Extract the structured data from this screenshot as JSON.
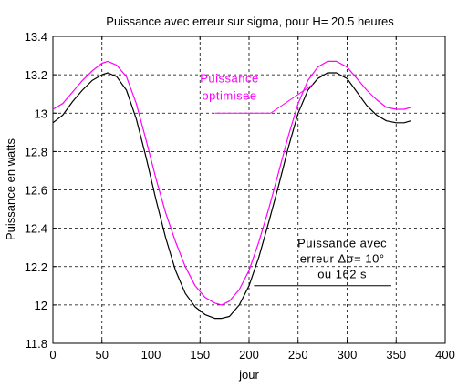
{
  "chart_data": {
    "type": "line",
    "title": "Puissance avec erreur sur sigma, pour H= 20.5 heures",
    "xlabel": "jour",
    "ylabel": "Puissance en watts",
    "xlim": [
      0,
      400
    ],
    "ylim": [
      11.8,
      13.4
    ],
    "xticks": [
      0,
      50,
      100,
      150,
      200,
      250,
      300,
      350,
      400
    ],
    "yticks": [
      11.8,
      12,
      12.2,
      12.4,
      12.6,
      12.8,
      13,
      13.2,
      13.4
    ],
    "ytick_labels": [
      "11.8",
      "12",
      "12.2",
      "12.4",
      "12.6",
      "12.8",
      "13",
      "13.2",
      "13.4"
    ],
    "grid": true,
    "series": [
      {
        "name": "Puissance optimisee",
        "color": "#ff00ff",
        "x": [
          0,
          10,
          20,
          30,
          40,
          50,
          56,
          65,
          75,
          85,
          95,
          105,
          115,
          125,
          135,
          145,
          155,
          165,
          172,
          180,
          190,
          200,
          210,
          220,
          230,
          240,
          250,
          260,
          270,
          280,
          289,
          300,
          310,
          320,
          330,
          340,
          350,
          358,
          365
        ],
        "y": [
          13.02,
          13.05,
          13.11,
          13.17,
          13.22,
          13.26,
          13.27,
          13.25,
          13.19,
          13.05,
          12.86,
          12.66,
          12.48,
          12.33,
          12.2,
          12.1,
          12.04,
          12.01,
          12.0,
          12.02,
          12.08,
          12.18,
          12.33,
          12.5,
          12.69,
          12.88,
          13.05,
          13.17,
          13.24,
          13.27,
          13.27,
          13.24,
          13.18,
          13.12,
          13.07,
          13.03,
          13.02,
          13.02,
          13.03
        ]
      },
      {
        "name": "Puissance avec erreur Δσ= 10° ou 162 s",
        "color": "#000000",
        "x": [
          0,
          10,
          20,
          30,
          40,
          50,
          56,
          65,
          75,
          85,
          95,
          105,
          115,
          125,
          135,
          145,
          155,
          165,
          172,
          180,
          190,
          200,
          210,
          220,
          230,
          240,
          250,
          260,
          270,
          280,
          289,
          300,
          310,
          320,
          330,
          340,
          350,
          358,
          365
        ],
        "y": [
          12.95,
          12.99,
          13.06,
          13.12,
          13.17,
          13.2,
          13.21,
          13.19,
          13.12,
          12.97,
          12.77,
          12.55,
          12.35,
          12.18,
          12.06,
          11.99,
          11.95,
          11.93,
          11.93,
          11.94,
          12.0,
          12.1,
          12.25,
          12.43,
          12.62,
          12.82,
          13.0,
          13.12,
          13.18,
          13.21,
          13.21,
          13.18,
          13.11,
          13.04,
          12.99,
          12.96,
          12.95,
          12.95,
          12.96
        ]
      }
    ],
    "annotations": [
      {
        "lines": [
          "Puissance",
          "optimisee"
        ],
        "color": "#ff00ff",
        "text_x": 180,
        "text_y": [
          13.16,
          13.07
        ],
        "leader": [
          [
            165,
            13.0
          ],
          [
            222,
            13.0
          ],
          [
            265,
            13.15
          ]
        ]
      },
      {
        "lines": [
          "Puissance avec",
          "erreur Δσ= 10°",
          "ou 162 s"
        ],
        "color": "#000000",
        "text_x": 295,
        "text_y": [
          12.3,
          12.22,
          12.14
        ],
        "leader": [
          [
            205,
            12.1
          ],
          [
            345,
            12.1
          ]
        ]
      }
    ]
  }
}
